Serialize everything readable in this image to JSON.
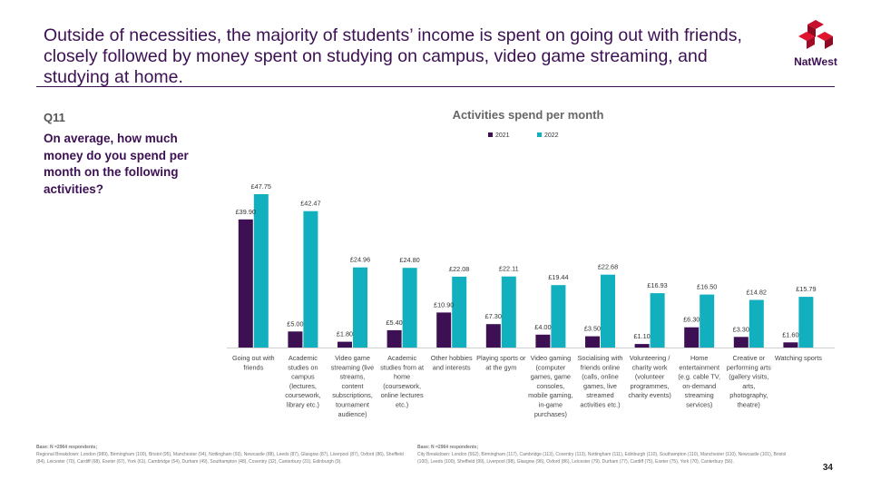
{
  "headline": "Outside of necessities, the majority of students’ income is spent on going out with friends, closely followed by money spent on studying on campus, video game streaming, and studying at home.",
  "brand": {
    "name": "NatWest",
    "color": "#c8102e",
    "logo_icon": "natwest-cube-logo"
  },
  "question": {
    "number": "Q11",
    "text": "On average, how much money do you spend per month on the following activities?"
  },
  "colors": {
    "series_2021": "#3c1053",
    "series_2022": "#12b0bf",
    "headline": "#3c1053"
  },
  "chart_data": {
    "type": "bar",
    "title": "Activities spend per month",
    "legend_position": "top-center",
    "ylim": [
      0,
      52
    ],
    "grid": false,
    "value_prefix": "£",
    "categories": [
      [
        "Going out with",
        "friends"
      ],
      [
        "Academic",
        "studies on",
        "campus",
        "(lectures,",
        "coursework,",
        "library etc.)"
      ],
      [
        "Video game",
        "streaming (live",
        "streams,",
        "content",
        "subscriptions,",
        "tournament",
        "audience)"
      ],
      [
        "Academic",
        "studies from at",
        "home",
        "(coursework,",
        "online lectures",
        "etc.)"
      ],
      [
        "Other hobbies",
        "and interests"
      ],
      [
        "Playing sports or",
        "at the gym"
      ],
      [
        "Video gaming",
        "(computer",
        "games, game",
        "consoles,",
        "mobile gaming,",
        "in-game",
        "purchases)"
      ],
      [
        "Socialising with",
        "friends online",
        "(calls, online",
        "games, live",
        "streamed",
        "activities etc.)"
      ],
      [
        "Volunteering /",
        "charity work",
        "(volunteer",
        "programmes,",
        "charity events)"
      ],
      [
        "Home",
        "entertainment",
        "(e.g. cable TV,",
        "on-demand",
        "streaming",
        "services)"
      ],
      [
        "Creative or",
        "performing arts",
        "(gallery visits,",
        "arts,",
        "photography,",
        "theatre)"
      ],
      [
        "Watching sports"
      ]
    ],
    "series": [
      {
        "name": "2021",
        "values": [
          39.9,
          5.0,
          1.8,
          5.4,
          10.9,
          7.3,
          4.0,
          3.5,
          1.1,
          6.3,
          3.3,
          1.6
        ],
        "labels": [
          "£39.90",
          "£5.00",
          "£1.80",
          "£5.40",
          "£10.90",
          "£7.30",
          "£4.00",
          "£3.50",
          "£1.10",
          "£6.30",
          "£3.30",
          "£1.60"
        ]
      },
      {
        "name": "2022",
        "values": [
          47.75,
          42.47,
          24.96,
          24.8,
          22.08,
          22.11,
          19.44,
          22.68,
          16.93,
          16.5,
          14.82,
          15.79
        ],
        "labels": [
          "£47.75",
          "£42.47",
          "£24.96",
          "£24.80",
          "£22.08",
          "£22.11",
          "£19.44",
          "£22.68",
          "£16.93",
          "£16.50",
          "£14.82",
          "£15.79"
        ]
      }
    ]
  },
  "footnotes": {
    "left_title": "Base: N =2964 respondents;",
    "left_body": "Regional Breakdown: London (989), Birmingham (100), Bristol (95), Manchester (94), Nottingham (93), Newcastle (88), Leeds (87), Glasgow (87), Liverpool (87), Oxford (86), Sheffield (84), Leicester (70), Cardiff (68), Exeter (67), York (61), Cambridge (54), Durham (49), Southampton (48), Coventry (32), Canterbury (31), Edinburgh (9).",
    "right_title": "Base: N =2964 respondents;",
    "right_body": "City Breakdown: London (562), Birmingham (117), Cambridge (113), Coventry (113), Nottingham (111), Edinburgh (110), Southampton (110), Manchester (110), Newcastle (101), Bristol (100), Leeds (100), Sheffield (99), Liverpool (98), Glasgow (96), Oxford (86), Leicester (79), Durham (77), Cardiff (75), Exeter (75), York (70), Canterbury (56)."
  },
  "page_number": "34"
}
